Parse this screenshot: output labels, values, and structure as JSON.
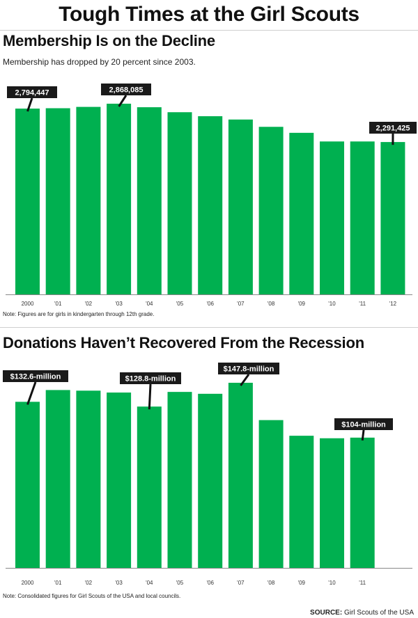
{
  "title": "Tough Times at the Girl Scouts",
  "colors": {
    "bar": "#00b050",
    "callout_bg": "#1a1a1a",
    "axis": "#888888"
  },
  "source": {
    "label": "SOURCE:",
    "text": "Girl Scouts of the USA"
  },
  "chart_data": [
    {
      "type": "bar",
      "title": "Membership Is on the Decline",
      "subtitle": "Membership has dropped by 20 percent since 2003.",
      "note": "Note: Figures are for girls in kindergarten through 12th grade.",
      "categories": [
        "2000",
        "'01",
        "'02",
        "'03",
        "'04",
        "'05",
        "'06",
        "'07",
        "'08",
        "'09",
        "'10",
        "'11",
        "'12"
      ],
      "values": [
        2794447,
        2800000,
        2820000,
        2868085,
        2815000,
        2740000,
        2680000,
        2630000,
        2520000,
        2430000,
        2300000,
        2300000,
        2291425
      ],
      "ylim": [
        0,
        2868085
      ],
      "grid": false,
      "annotations": [
        {
          "index": 0,
          "text": "2,794,447"
        },
        {
          "index": 3,
          "text": "2,868,085"
        },
        {
          "index": 12,
          "text": "2,291,425"
        }
      ]
    },
    {
      "type": "bar",
      "title": "Donations Haven’t Recovered From the Recession",
      "note": "Note: Consolidated figures for Girl Scouts of the USA and local councils.",
      "categories": [
        "2000",
        "'01",
        "'02",
        "'03",
        "'04",
        "'05",
        "'06",
        "'07",
        "'08",
        "'09",
        "'10",
        "'11"
      ],
      "values": [
        132.6,
        142,
        141.5,
        140,
        128.8,
        140.5,
        139,
        147.8,
        118,
        105.5,
        103.5,
        104
      ],
      "unit": "$ million",
      "ylim": [
        0,
        147.8
      ],
      "grid": false,
      "annotations": [
        {
          "index": 0,
          "text": "$132.6-million"
        },
        {
          "index": 4,
          "text": "$128.8-million"
        },
        {
          "index": 7,
          "text": "$147.8-million"
        },
        {
          "index": 11,
          "text": "$104-million"
        }
      ]
    }
  ]
}
